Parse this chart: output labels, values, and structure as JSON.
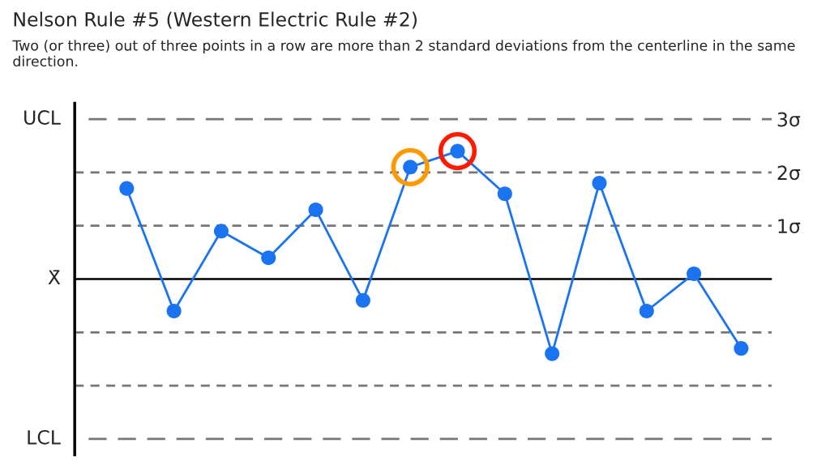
{
  "chart_data": {
    "type": "line",
    "title": "Nelson Rule #5 (Western Electric Rule #2)",
    "subtitle": "Two (or three) out of three points in a row are more than 2 standard deviations from the centerline in the same direction.",
    "categories": [
      null,
      null,
      null,
      null,
      null,
      null,
      null,
      null,
      null,
      null,
      null,
      null,
      null,
      null
    ],
    "series": [
      {
        "color": "#1a73f0",
        "values": [
          1.7,
          -0.6,
          0.9,
          0.4,
          1.3,
          -0.4,
          2.1,
          2.4,
          1.6,
          -1.4,
          1.8,
          -0.6,
          0.1,
          -1.3
        ],
        "marker": "circle",
        "line_style": "solid"
      },
      {
        "type": "scatter",
        "color": "#ff9900",
        "values": [
          null,
          null,
          null,
          null,
          null,
          null,
          2.1,
          null,
          null,
          null,
          null,
          null,
          null,
          null
        ],
        "marker": "circle"
      },
      {
        "type": "scatter",
        "color": "#ff1a00",
        "values": [
          null,
          null,
          null,
          null,
          null,
          null,
          null,
          2.4,
          null,
          null,
          null,
          null,
          null,
          null
        ],
        "marker": "circle"
      }
    ],
    "ylim": [
      -3.3,
      3.3
    ],
    "yticks": [
      {
        "value": 3,
        "label": "3σ"
      },
      {
        "value": 2,
        "label": "2σ"
      },
      {
        "value": 1,
        "label": "1σ"
      }
    ],
    "ref_lines": [
      {
        "axis": "y",
        "value": 3,
        "label": "UCL",
        "color": "#777777",
        "line_style": "dashed"
      },
      {
        "axis": "y",
        "value": 2,
        "color": "#777777",
        "line_style": "dashed"
      },
      {
        "axis": "y",
        "value": 1,
        "color": "#777777",
        "line_style": "dashed"
      },
      {
        "axis": "y",
        "value": 0,
        "label": "X̄",
        "color": "#000000",
        "line_style": "solid"
      },
      {
        "axis": "y",
        "value": -1,
        "color": "#777777",
        "line_style": "dashed"
      },
      {
        "axis": "y",
        "value": -2,
        "color": "#777777",
        "line_style": "dashed"
      },
      {
        "axis": "y",
        "value": -3,
        "label": "LCL",
        "color": "#777777",
        "line_style": "dashed"
      }
    ],
    "grid": false,
    "legend": false
  }
}
